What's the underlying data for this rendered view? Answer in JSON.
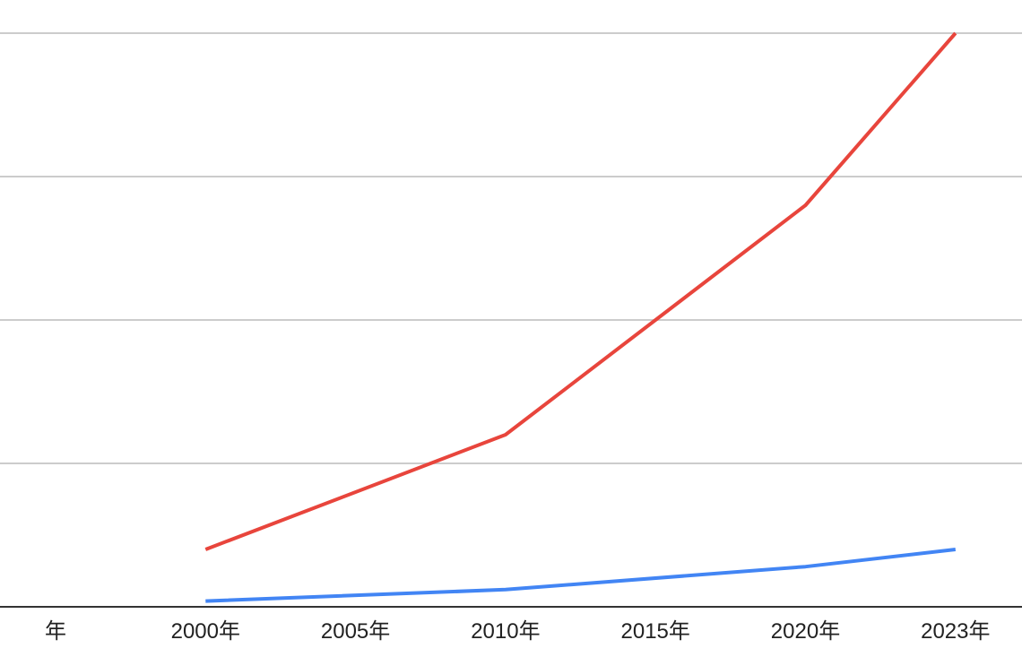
{
  "chart_data": {
    "type": "line",
    "categories": [
      "年",
      "2000年",
      "2005年",
      "2010年",
      "2015年",
      "2020年",
      "2023年"
    ],
    "x_labels": [
      "年",
      "2000年",
      "2005年",
      "2010年",
      "2015年",
      "2020年",
      "2023年"
    ],
    "ylim": [
      0,
      100
    ],
    "grid": true,
    "series": [
      {
        "color": "#e8453c",
        "points": [
          {
            "x": "2000年",
            "y": 10
          },
          {
            "x": "2010年",
            "y": 30
          },
          {
            "x": "2020年",
            "y": 70
          },
          {
            "x": "2023年",
            "y": 100
          }
        ]
      },
      {
        "color": "#4285f4",
        "points": [
          {
            "x": "2000年",
            "y": 1
          },
          {
            "x": "2010年",
            "y": 3
          },
          {
            "x": "2020年",
            "y": 7
          },
          {
            "x": "2023年",
            "y": 10
          }
        ]
      }
    ]
  }
}
